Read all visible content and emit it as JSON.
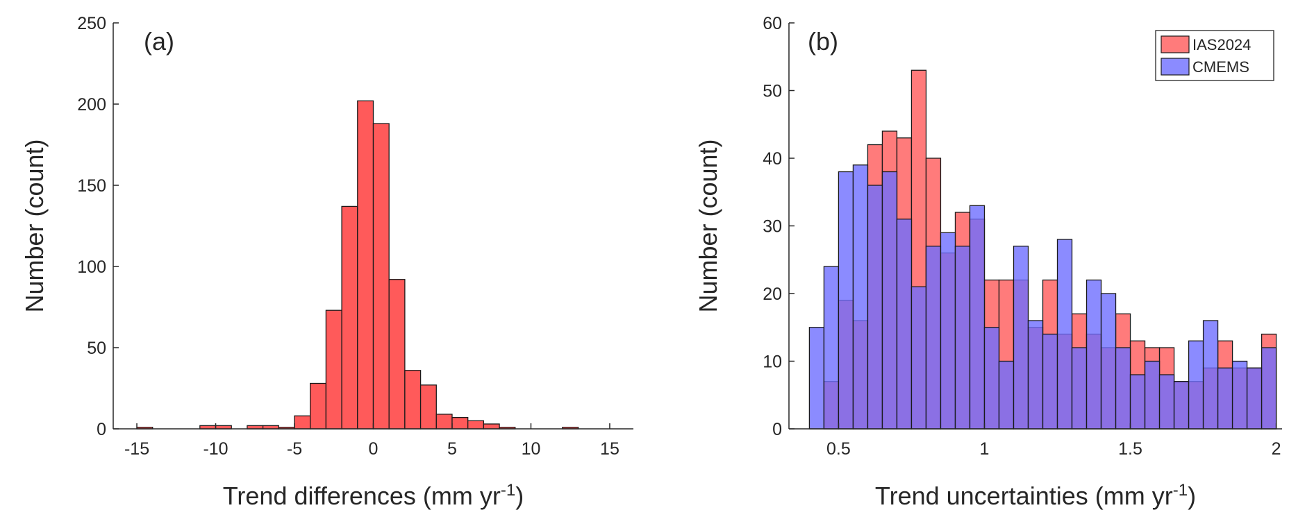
{
  "chart_data": [
    {
      "panel_label": "(a)",
      "type": "bar",
      "title": "",
      "xlabel": "Trend differences (mm yr",
      "xlabel_sup": "-1",
      "xlabel_end": ")",
      "ylabel": "Number (count)",
      "xlim": [
        -16.5,
        16.5
      ],
      "ylim": [
        0,
        250
      ],
      "xticks": [
        -15,
        -10,
        -5,
        0,
        5,
        10,
        15
      ],
      "xtick_labels": [
        "-15",
        "-10",
        "-5",
        "0",
        "5",
        "10",
        "15"
      ],
      "yticks": [
        0,
        50,
        100,
        150,
        200,
        250
      ],
      "ytick_labels": [
        "0",
        "50",
        "100",
        "150",
        "200",
        "250"
      ],
      "bin_width": 1,
      "series": [
        {
          "name": "Trend differences",
          "color": "#ff5a5a",
          "bin_starts": [
            -15,
            -14,
            -13,
            -12,
            -11,
            -10,
            -9,
            -8,
            -7,
            -6,
            -5,
            -4,
            -3,
            -2,
            -1,
            0,
            1,
            2,
            3,
            4,
            5,
            6,
            7,
            8,
            9,
            10,
            11,
            12,
            13,
            14
          ],
          "values": [
            1,
            0,
            0,
            0,
            2,
            2,
            0,
            2,
            2,
            1,
            8,
            28,
            73,
            137,
            202,
            188,
            92,
            36,
            27,
            9,
            7,
            5,
            3,
            1,
            0,
            0,
            0,
            1,
            0,
            0
          ]
        }
      ]
    },
    {
      "panel_label": "(b)",
      "type": "bar",
      "title": "",
      "xlabel": "Trend uncertainties (mm yr",
      "xlabel_sup": "-1",
      "xlabel_end": ")",
      "ylabel": "Number (count)",
      "xlim": [
        0.33,
        2.02
      ],
      "ylim": [
        0,
        60
      ],
      "xticks": [
        0.5,
        1,
        1.5,
        2
      ],
      "xtick_labels": [
        "0.5",
        "1",
        "1.5",
        "2"
      ],
      "yticks": [
        0,
        10,
        20,
        30,
        40,
        50,
        60
      ],
      "ytick_labels": [
        "0",
        "10",
        "20",
        "30",
        "40",
        "50",
        "60"
      ],
      "bin_width": 0.05,
      "legend_position": "top-right",
      "series": [
        {
          "name": "IAS2024",
          "color": "#ff5a5a",
          "bin_starts": [
            0.4,
            0.45,
            0.5,
            0.55,
            0.6,
            0.65,
            0.7,
            0.75,
            0.8,
            0.85,
            0.9,
            0.95,
            1.0,
            1.05,
            1.1,
            1.15,
            1.2,
            1.25,
            1.3,
            1.35,
            1.4,
            1.45,
            1.5,
            1.55,
            1.6,
            1.65,
            1.7,
            1.75,
            1.8,
            1.85,
            1.9,
            1.95
          ],
          "values": [
            0,
            7,
            19,
            16,
            42,
            44,
            43,
            53,
            40,
            26,
            32,
            31,
            22,
            22,
            22,
            15,
            22,
            14,
            17,
            14,
            12,
            17,
            13,
            12,
            12,
            7,
            7,
            9,
            13,
            9,
            9,
            14
          ]
        },
        {
          "name": "CMEMS",
          "color": "#6e6eff",
          "bin_starts": [
            0.4,
            0.45,
            0.5,
            0.55,
            0.6,
            0.65,
            0.7,
            0.75,
            0.8,
            0.85,
            0.9,
            0.95,
            1.0,
            1.05,
            1.1,
            1.15,
            1.2,
            1.25,
            1.3,
            1.35,
            1.4,
            1.45,
            1.5,
            1.55,
            1.6,
            1.65,
            1.7,
            1.75,
            1.8,
            1.85,
            1.9,
            1.95
          ],
          "values": [
            15,
            24,
            38,
            39,
            36,
            38,
            31,
            21,
            27,
            29,
            27,
            33,
            15,
            10,
            27,
            16,
            14,
            28,
            12,
            22,
            20,
            12,
            8,
            10,
            8,
            7,
            13,
            16,
            9,
            10,
            9,
            12
          ]
        }
      ]
    }
  ]
}
